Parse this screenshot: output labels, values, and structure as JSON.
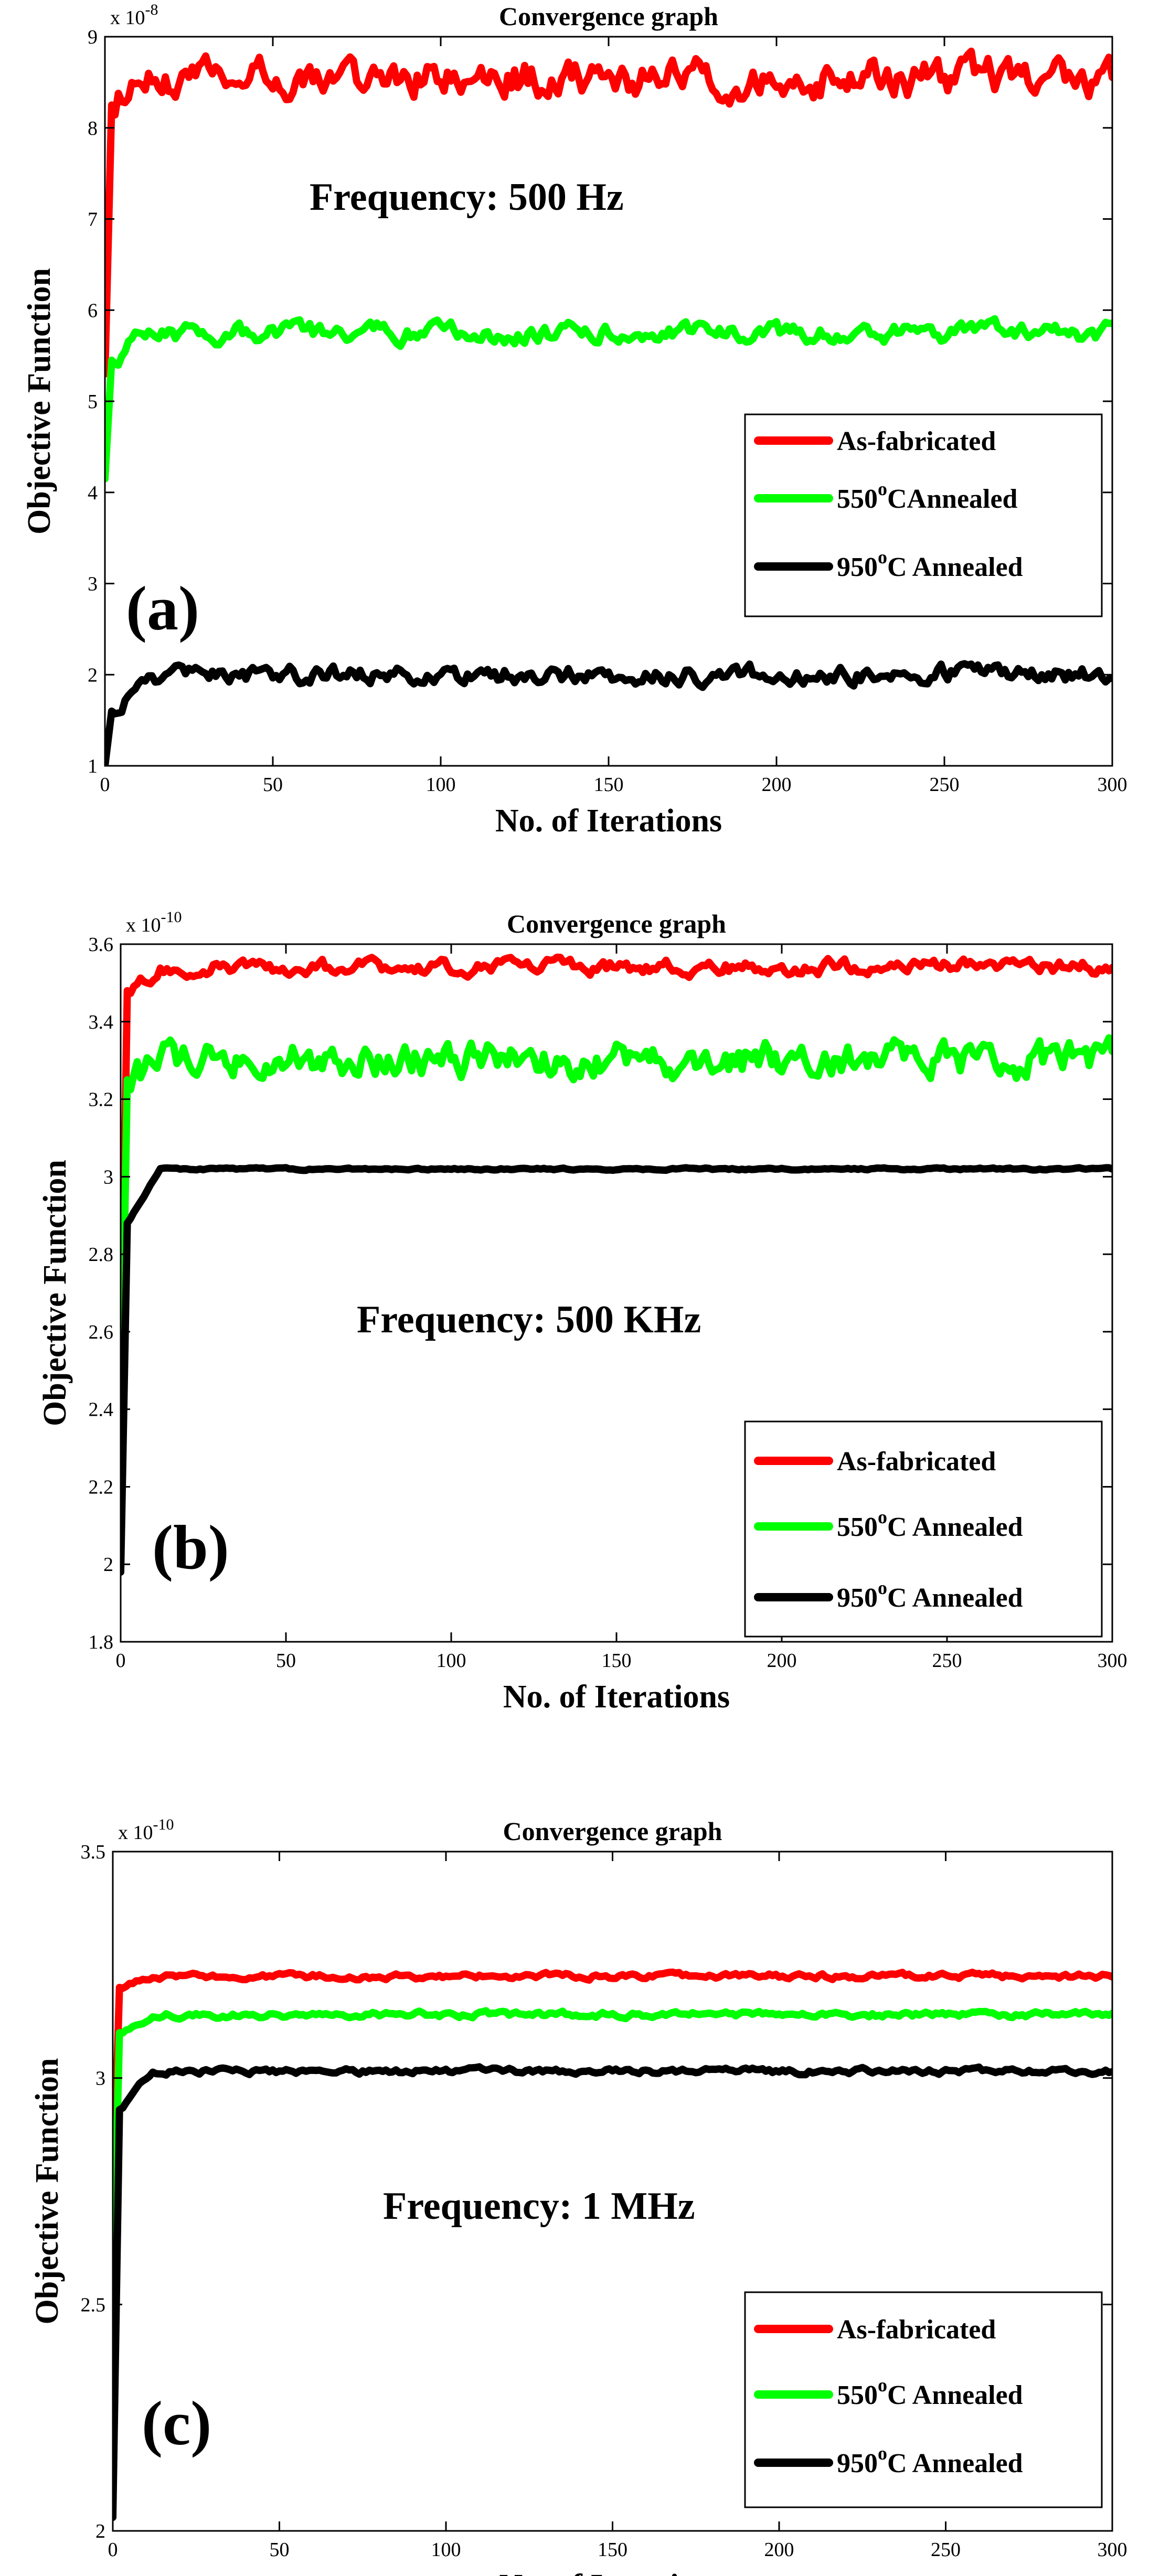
{
  "chart_data": [
    {
      "type": "line",
      "title": "Convergence graph",
      "xlabel": "No. of Iterations",
      "ylabel": "Objective Function",
      "exponent_label": "x 10",
      "exponent": "-8",
      "annotation": "Frequency: 500 Hz",
      "panel_label": "(a)",
      "xlim": [
        0,
        300
      ],
      "ylim": [
        1,
        9
      ],
      "xticks": [
        "0",
        "50",
        "100",
        "150",
        "200",
        "250",
        "300"
      ],
      "yticks": [
        "1",
        "2",
        "3",
        "4",
        "5",
        "6",
        "7",
        "8",
        "9"
      ],
      "legend_position": "right",
      "series": [
        {
          "name": "As-fabricated",
          "color": "#ff0000",
          "start": 5.3,
          "mid": 8.25,
          "plateau": 8.55,
          "noise": 0.16
        },
        {
          "name": "550",
          "name_sup": "o",
          "name_rest": "CAnnealed",
          "color": "#00ff00",
          "start": 4.15,
          "mid": 5.45,
          "plateau": 5.75,
          "noise": 0.08
        },
        {
          "name": "950",
          "name_sup": "o",
          "name_rest": "C Annealed",
          "color": "#000000",
          "start": 1.0,
          "mid": 1.6,
          "plateau": 2.0,
          "noise": 0.08
        }
      ]
    },
    {
      "type": "line",
      "title": "Convergence graph",
      "xlabel": "No. of Iterations",
      "ylabel": "Objective Function",
      "exponent_label": "x 10",
      "exponent": "-10",
      "annotation": "Frequency: 500 KHz",
      "panel_label": "(b)",
      "xlim": [
        0,
        300
      ],
      "ylim": [
        1.8,
        3.6
      ],
      "xticks": [
        "0",
        "50",
        "100",
        "150",
        "200",
        "250",
        "300"
      ],
      "yticks": [
        "1.8",
        "2",
        "2.2",
        "2.4",
        "2.6",
        "2.8",
        "3",
        "3.2",
        "3.4",
        "3.6"
      ],
      "legend_position": "bottom-right",
      "series": [
        {
          "name": "As-fabricated",
          "color": "#ff0000",
          "start": 2.4,
          "mid": 3.48,
          "plateau": 3.54,
          "noise": 0.015
        },
        {
          "name": "550",
          "name_sup": "o",
          "name_rest": "C Annealed",
          "color": "#00ff00",
          "start": 2.3,
          "mid": 3.25,
          "plateau": 3.3,
          "noise": 0.035
        },
        {
          "name": "950",
          "name_sup": "o",
          "name_rest": "C Annealed",
          "color": "#000000",
          "start": 1.98,
          "mid": 2.88,
          "plateau": 3.02,
          "noise": 0.002
        }
      ]
    },
    {
      "type": "line",
      "title": "Convergence graph",
      "xlabel": "No. of Iterations",
      "ylabel": "Objective Function",
      "exponent_label": "x 10",
      "exponent": "-10",
      "annotation": "Frequency: 1 MHz",
      "panel_label": "(c)",
      "xlim": [
        0,
        300
      ],
      "ylim": [
        2,
        3.5
      ],
      "xticks": [
        "0",
        "50",
        "100",
        "150",
        "200",
        "250",
        "300"
      ],
      "yticks": [
        "2",
        "2.5",
        "3",
        "3.5"
      ],
      "legend_position": "bottom-right",
      "series": [
        {
          "name": "As-fabricated",
          "color": "#ff0000",
          "start": 2.7,
          "mid": 3.2,
          "plateau": 3.225,
          "noise": 0.005
        },
        {
          "name": "550",
          "name_sup": "o",
          "name_rest": "C Annealed",
          "color": "#00ff00",
          "start": 2.5,
          "mid": 3.1,
          "plateau": 3.14,
          "noise": 0.005
        },
        {
          "name": "950",
          "name_sup": "o",
          "name_rest": "C Annealed",
          "color": "#000000",
          "start": 2.03,
          "mid": 2.93,
          "plateau": 3.015,
          "noise": 0.005
        }
      ]
    }
  ]
}
